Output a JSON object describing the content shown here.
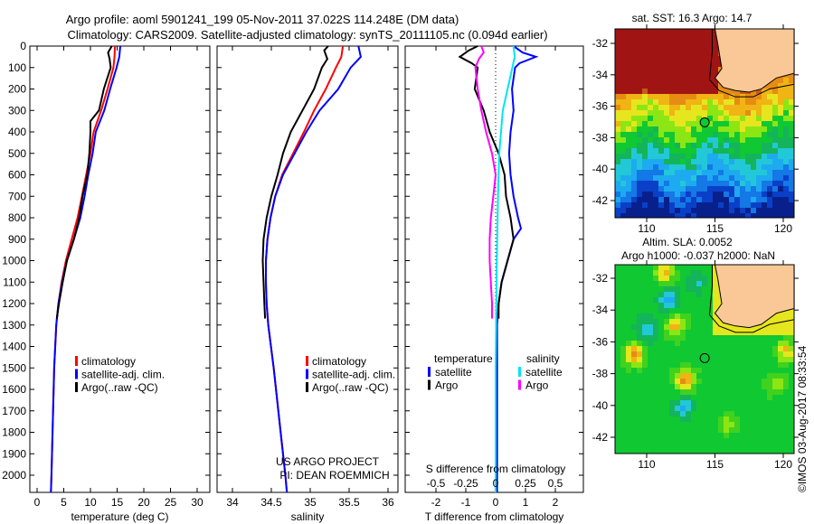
{
  "title_line1": "Argo profile: aoml 5901241_199 05-Nov-2011 37.022S 114.248E (DM data)",
  "title_line2": "Climatology: CARS2009. Satellite-adjusted climatology: synTS_20111105.nc (0.094d earlier)",
  "project_line1": "US ARGO PROJECT",
  "project_line2": "PI: DEAN ROEMMICH",
  "copyright": "©IMOS 03-Aug-2017 08:33:54",
  "colors": {
    "climatology": "#ff0000",
    "satellite": "#0000ff",
    "argo": "#000000",
    "s_satellite": "#00e5ee",
    "s_argo": "#ff00ff"
  },
  "chart_data": [
    {
      "type": "line",
      "xlabel": "temperature (deg C)",
      "ylabel": "depth",
      "xticks": [
        0,
        5,
        10,
        15,
        20,
        25,
        30
      ],
      "xlim": [
        -1.4,
        32.4
      ],
      "ylim": [
        2080,
        0
      ],
      "yticks": [
        0,
        100,
        200,
        300,
        400,
        500,
        600,
        700,
        800,
        900,
        1000,
        1100,
        1200,
        1300,
        1400,
        1500,
        1600,
        1700,
        1800,
        1900,
        2000
      ],
      "legend": [
        "climatology",
        "satellite-adj. clim.",
        "Argo(..raw -QC)"
      ],
      "series": [
        {
          "name": "climatology",
          "color": "#ff0000",
          "depth": [
            0,
            50,
            100,
            200,
            300,
            400,
            500,
            600,
            700,
            800,
            900,
            1000,
            1100,
            1200,
            1300,
            1500,
            1800,
            2000,
            2080
          ],
          "values": [
            14.6,
            14.5,
            14.3,
            13.2,
            12.0,
            10.6,
            10.0,
            9.2,
            8.4,
            7.6,
            6.5,
            5.4,
            4.6,
            4.0,
            3.6,
            3.2,
            2.9,
            2.7,
            2.6
          ]
        },
        {
          "name": "satellite-adj. clim.",
          "color": "#0000ff",
          "depth": [
            0,
            50,
            100,
            200,
            300,
            400,
            500,
            600,
            700,
            800,
            900,
            1000,
            1100,
            1200,
            1300,
            1500,
            1800,
            2000,
            2080
          ],
          "values": [
            15.6,
            15.4,
            14.9,
            13.7,
            12.6,
            11.0,
            10.4,
            9.6,
            8.9,
            8.1,
            6.9,
            5.6,
            4.7,
            4.0,
            3.6,
            3.2,
            2.9,
            2.7,
            2.6
          ]
        },
        {
          "name": "Argo(..raw -QC)",
          "color": "#000000",
          "depth": [
            0,
            30,
            60,
            100,
            200,
            300,
            350,
            400,
            500,
            600,
            700,
            800,
            900,
            1000,
            1100,
            1200,
            1270
          ],
          "values": [
            14.0,
            13.3,
            13.6,
            13.8,
            12.5,
            11.6,
            10.0,
            10.0,
            9.8,
            9.4,
            8.5,
            7.9,
            6.9,
            5.6,
            4.8,
            4.1,
            3.7
          ]
        }
      ]
    },
    {
      "type": "line",
      "xlabel": "salinity",
      "xticks": [
        34,
        34.5,
        35,
        35.5,
        36
      ],
      "xlim": [
        33.8,
        36.1
      ],
      "ylim": [
        2080,
        0
      ],
      "legend": [
        "climatology",
        "satellite-adj. clim.",
        "Argo(..raw -QC)"
      ],
      "series": [
        {
          "name": "climatology",
          "color": "#ff0000",
          "depth": [
            0,
            50,
            100,
            200,
            300,
            400,
            500,
            600,
            700,
            800,
            900,
            1000,
            1100,
            1200,
            1300,
            1500,
            1800,
            2000,
            2080
          ],
          "values": [
            35.42,
            35.4,
            35.33,
            35.2,
            35.05,
            34.92,
            34.78,
            34.64,
            34.55,
            34.49,
            34.45,
            34.43,
            34.43,
            34.44,
            34.46,
            34.53,
            34.62,
            34.68,
            34.7
          ]
        },
        {
          "name": "satellite-adj. clim.",
          "color": "#0000ff",
          "depth": [
            0,
            50,
            100,
            200,
            300,
            400,
            500,
            600,
            700,
            800,
            900,
            1000,
            1100,
            1200,
            1300,
            1500,
            1800,
            2000,
            2080
          ],
          "values": [
            35.62,
            35.65,
            35.52,
            35.36,
            35.12,
            34.95,
            34.8,
            34.65,
            34.55,
            34.49,
            34.45,
            34.43,
            34.43,
            34.44,
            34.46,
            34.53,
            34.62,
            34.68,
            34.7
          ]
        },
        {
          "name": "Argo(..raw -QC)",
          "color": "#000000",
          "depth": [
            0,
            20,
            60,
            100,
            200,
            300,
            400,
            500,
            600,
            700,
            800,
            900,
            1000,
            1100,
            1200,
            1270
          ],
          "values": [
            35.23,
            35.18,
            35.22,
            35.15,
            35.05,
            34.9,
            34.75,
            34.65,
            34.58,
            34.5,
            34.44,
            34.4,
            34.39,
            34.4,
            34.41,
            34.42
          ]
        }
      ]
    },
    {
      "type": "line",
      "xlabel": "T difference from climatology",
      "xlabel2": "S difference from climatology",
      "xticks": [
        -2,
        -1,
        0,
        1,
        2
      ],
      "xticks2": [
        -0.5,
        -0.25,
        0,
        0.25,
        0.5
      ],
      "xlim": [
        -3.0,
        2.95
      ],
      "ylim": [
        2080,
        0
      ],
      "legend_titles": [
        "temperature",
        "salinity"
      ],
      "legend": [
        {
          "label": "satellite",
          "color": "#0000ff"
        },
        {
          "label": "Argo",
          "color": "#000000"
        },
        {
          "label": "satellite",
          "color": "#00e5ee"
        },
        {
          "label": "Argo",
          "color": "#ff00ff"
        }
      ],
      "series": [
        {
          "name": "T satellite",
          "kind": "T",
          "color": "#0000ff",
          "depth": [
            0,
            30,
            50,
            80,
            100,
            200,
            300,
            400,
            500,
            600,
            700,
            800,
            850,
            900,
            1000,
            1100,
            1200,
            1300,
            1500,
            2080
          ],
          "values": [
            0.6,
            0.9,
            1.35,
            0.8,
            0.65,
            0.55,
            0.6,
            0.5,
            0.45,
            0.5,
            0.6,
            0.75,
            0.85,
            0.6,
            0.4,
            0.2,
            0.1,
            0.05,
            0.05,
            0.05
          ]
        },
        {
          "name": "T Argo",
          "kind": "T",
          "color": "#000000",
          "depth": [
            0,
            20,
            50,
            80,
            100,
            200,
            300,
            400,
            500,
            600,
            700,
            800,
            900,
            1000,
            1100,
            1200,
            1270
          ],
          "values": [
            -0.6,
            -0.9,
            -1.2,
            -0.8,
            -0.6,
            -0.7,
            -0.4,
            -0.2,
            0.1,
            0.3,
            0.35,
            0.5,
            0.6,
            0.4,
            0.2,
            0.1,
            0.1
          ]
        },
        {
          "name": "S satellite",
          "kind": "S",
          "color": "#00e5ee",
          "depth": [
            0,
            50,
            100,
            200,
            300,
            500,
            700,
            1000,
            1500,
            2080
          ],
          "values": [
            0.15,
            0.16,
            0.14,
            0.1,
            0.06,
            0.03,
            0.02,
            0.01,
            0.0,
            0.0
          ]
        },
        {
          "name": "S Argo",
          "kind": "S",
          "color": "#ff00ff",
          "depth": [
            0,
            30,
            60,
            100,
            200,
            300,
            400,
            500,
            600,
            700,
            800,
            900,
            1000,
            1100,
            1200,
            1270
          ],
          "values": [
            -0.12,
            -0.1,
            -0.14,
            -0.17,
            -0.15,
            -0.12,
            -0.08,
            -0.03,
            0.0,
            -0.02,
            -0.04,
            -0.05,
            -0.05,
            -0.04,
            -0.03,
            -0.03
          ]
        }
      ]
    },
    {
      "type": "heatmap",
      "title": "sat. SST: 16.3 Argo: 14.7",
      "xticks": [
        110,
        115,
        120
      ],
      "yticks": [
        -32,
        -34,
        -36,
        -38,
        -40,
        -42
      ],
      "argo_position": {
        "lon": 114.248,
        "lat": -37.022
      }
    },
    {
      "type": "heatmap",
      "title_line1": "Altim. SLA: 0.0052",
      "title_line2": "Argo h1000: -0.037 h2000: NaN",
      "xticks": [
        110,
        115,
        120
      ],
      "yticks": [
        -32,
        -34,
        -36,
        -38,
        -40,
        -42
      ],
      "argo_position": {
        "lon": 114.248,
        "lat": -37.022
      }
    }
  ]
}
